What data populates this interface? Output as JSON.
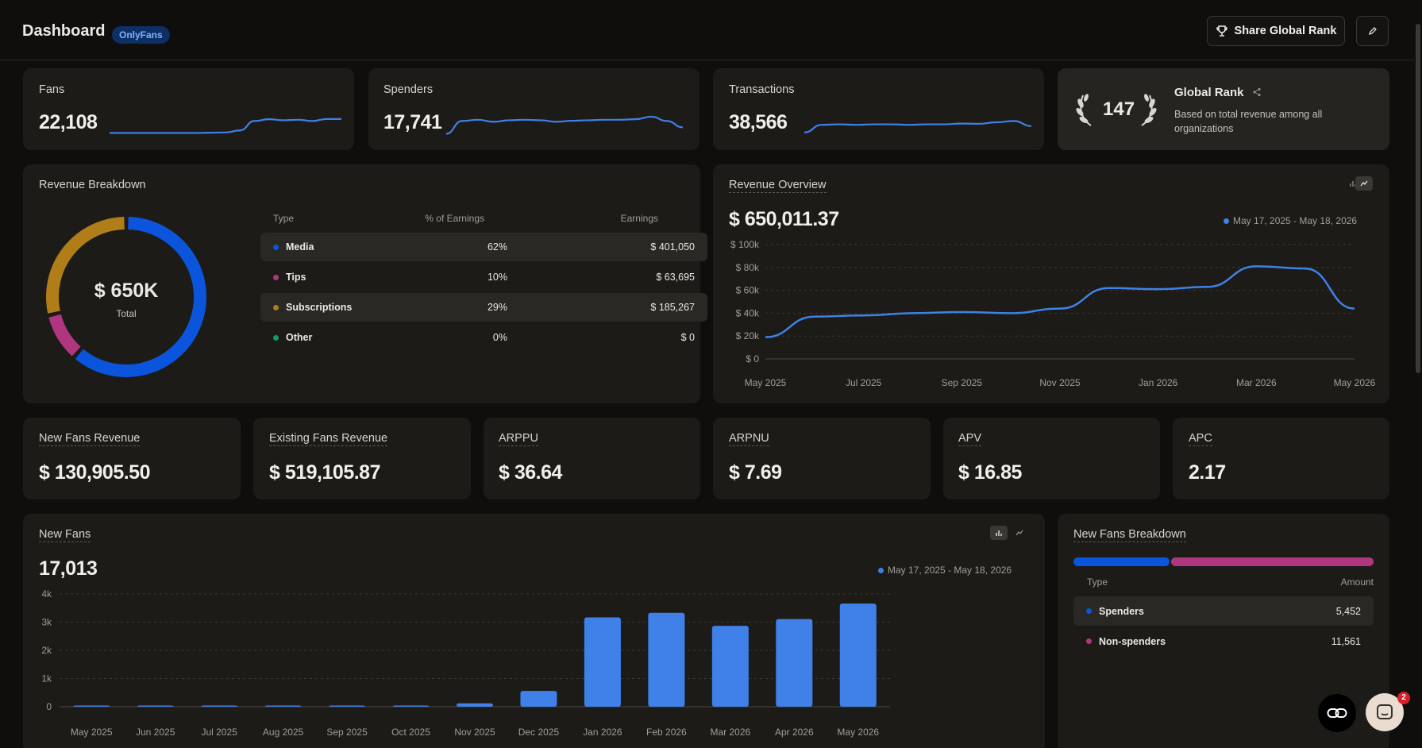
{
  "header": {
    "title": "Dashboard",
    "platform_badge": "OnlyFans",
    "share_label": "Share Global Rank",
    "edit_icon": "pencil-icon",
    "share_icon": "trophy-icon"
  },
  "kpi": {
    "fans": {
      "label": "Fans",
      "value": "22,108",
      "trend": [
        0.08,
        0.08,
        0.08,
        0.08,
        0.08,
        0.08,
        0.08,
        0.09,
        0.1,
        0.18,
        0.55,
        0.62,
        0.58,
        0.6,
        0.55,
        0.63,
        0.63
      ]
    },
    "spenders": {
      "label": "Spenders",
      "value": "17,741",
      "trend": [
        0.05,
        0.55,
        0.6,
        0.52,
        0.58,
        0.6,
        0.58,
        0.52,
        0.56,
        0.58,
        0.6,
        0.6,
        0.62,
        0.72,
        0.55,
        0.3
      ]
    },
    "transactions": {
      "label": "Transactions",
      "value": "38,566",
      "trend": [
        0.1,
        0.4,
        0.42,
        0.4,
        0.42,
        0.42,
        0.4,
        0.42,
        0.42,
        0.45,
        0.44,
        0.5,
        0.55,
        0.35
      ]
    },
    "global_rank": {
      "rank": "147",
      "title": "Global Rank",
      "description": "Based on total revenue among all organizations"
    }
  },
  "revenue_breakdown": {
    "title": "Revenue Breakdown",
    "total": "$ 650K",
    "total_label": "Total",
    "columns": [
      "Type",
      "% of Earnings",
      "Earnings"
    ],
    "rows": [
      {
        "type": "Media",
        "pct": "62%",
        "earnings": "$ 401,050",
        "color": "#0a55db"
      },
      {
        "type": "Tips",
        "pct": "10%",
        "earnings": "$ 63,695",
        "color": "#b0377f"
      },
      {
        "type": "Subscriptions",
        "pct": "29%",
        "earnings": "$ 185,267",
        "color": "#b07d18"
      },
      {
        "type": "Other",
        "pct": "0%",
        "earnings": "$ 0",
        "color": "#0f9d68"
      }
    ]
  },
  "revenue_overview": {
    "title": "Revenue Overview",
    "value": "$ 650,011.37",
    "range": "May 17, 2025 - May 18, 2026"
  },
  "metrics": [
    {
      "label": "New Fans Revenue",
      "value": "$ 130,905.50"
    },
    {
      "label": "Existing Fans Revenue",
      "value": "$ 519,105.87"
    },
    {
      "label": "ARPPU",
      "value": "$ 36.64"
    },
    {
      "label": "ARPNU",
      "value": "$ 7.69"
    },
    {
      "label": "APV",
      "value": "$ 16.85"
    },
    {
      "label": "APC",
      "value": "2.17"
    }
  ],
  "new_fans": {
    "title": "New Fans",
    "value": "17,013",
    "range": "May 17, 2025 - May 18, 2026"
  },
  "new_fans_breakdown": {
    "title": "New Fans Breakdown",
    "columns": [
      "Type",
      "Amount"
    ],
    "rows": [
      {
        "type": "Spenders",
        "amount": "5,452",
        "color": "#0a55db"
      },
      {
        "type": "Non-spenders",
        "amount": "11,561",
        "color": "#b0377f"
      }
    ]
  },
  "chat_badge": "2",
  "chart_data": [
    {
      "type": "line",
      "title": "Revenue Overview",
      "x": [
        "May 2025",
        "Jun 2025",
        "Jul 2025",
        "Aug 2025",
        "Sep 2025",
        "Oct 2025",
        "Nov 2025",
        "Dec 2025",
        "Jan 2026",
        "Feb 2026",
        "Mar 2026",
        "Apr 2026",
        "May 2026"
      ],
      "values": [
        19000,
        37000,
        38000,
        40000,
        41000,
        40000,
        44000,
        62000,
        61000,
        63000,
        81000,
        79000,
        44000
      ],
      "tick_labels_x": [
        "May 2025",
        "Jul 2025",
        "Sep 2025",
        "Nov 2025",
        "Jan 2026",
        "Mar 2026",
        "May 2026"
      ],
      "tick_labels_y": [
        "$ 0",
        "$ 20k",
        "$ 40k",
        "$ 60k",
        "$ 80k",
        "$ 100k"
      ],
      "ylim": [
        0,
        100000
      ],
      "grid": true
    },
    {
      "type": "bar",
      "title": "New Fans",
      "categories": [
        "May 2025",
        "Jun 2025",
        "Jul 2025",
        "Aug 2025",
        "Sep 2025",
        "Oct 2025",
        "Nov 2025",
        "Dec 2025",
        "Jan 2026",
        "Feb 2026",
        "Mar 2026",
        "Apr 2026",
        "May 2026"
      ],
      "values": [
        20,
        15,
        15,
        10,
        10,
        20,
        120,
        560,
        3170,
        3330,
        2870,
        3110,
        3660
      ],
      "tick_labels_y": [
        "0",
        "1k",
        "2k",
        "3k",
        "4k"
      ],
      "ylim": [
        0,
        4000
      ],
      "grid": true
    }
  ]
}
